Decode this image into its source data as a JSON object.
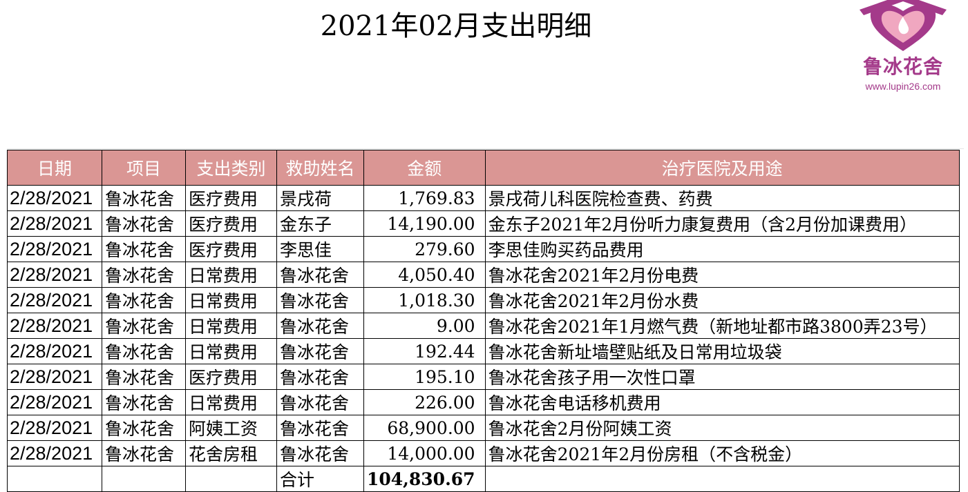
{
  "title": "2021年02月支出明细",
  "logo": {
    "name": "鲁冰花舍",
    "url": "www.lupin26.com",
    "icon": "heart-house-logo-icon",
    "brand_color": "#a43a8a"
  },
  "table": {
    "header_color": "#da9694",
    "headers": [
      "日期",
      "项目",
      "支出类别",
      "救助姓名",
      "金额",
      "治疗医院及用途"
    ],
    "rows": [
      {
        "date": "2/28/2021",
        "project": "鲁冰花舍",
        "category": "医疗费用",
        "name": "景戌荷",
        "amount": "1,769.83",
        "purpose": "景戌荷儿科医院检查费、药费"
      },
      {
        "date": "2/28/2021",
        "project": "鲁冰花舍",
        "category": "医疗费用",
        "name": "金东子",
        "amount": "14,190.00",
        "purpose": "金东子2021年2月份听力康复费用（含2月份加课费用）"
      },
      {
        "date": "2/28/2021",
        "project": "鲁冰花舍",
        "category": "医疗费用",
        "name": "李思佳",
        "amount": "279.60",
        "purpose": "李思佳购买药品费用"
      },
      {
        "date": "2/28/2021",
        "project": "鲁冰花舍",
        "category": "日常费用",
        "name": "鲁冰花舍",
        "amount": "4,050.40",
        "purpose": "鲁冰花舍2021年2月份电费"
      },
      {
        "date": "2/28/2021",
        "project": "鲁冰花舍",
        "category": "日常费用",
        "name": "鲁冰花舍",
        "amount": "1,018.30",
        "purpose": "鲁冰花舍2021年2月份水费"
      },
      {
        "date": "2/28/2021",
        "project": "鲁冰花舍",
        "category": "日常费用",
        "name": "鲁冰花舍",
        "amount": "9.00",
        "purpose": "鲁冰花舍2021年1月燃气费（新地址都市路3800弄23号）"
      },
      {
        "date": "2/28/2021",
        "project": "鲁冰花舍",
        "category": "日常费用",
        "name": "鲁冰花舍",
        "amount": "192.44",
        "purpose": "鲁冰花舍新址墙壁贴纸及日常用垃圾袋"
      },
      {
        "date": "2/28/2021",
        "project": "鲁冰花舍",
        "category": "医疗费用",
        "name": "鲁冰花舍",
        "amount": "195.10",
        "purpose": "鲁冰花舍孩子用一次性口罩"
      },
      {
        "date": "2/28/2021",
        "project": "鲁冰花舍",
        "category": "日常费用",
        "name": "鲁冰花舍",
        "amount": "226.00",
        "purpose": "鲁冰花舍电话移机费用"
      },
      {
        "date": "2/28/2021",
        "project": "鲁冰花舍",
        "category": "阿姨工资",
        "name": "鲁冰花舍",
        "amount": "68,900.00",
        "purpose": "鲁冰花舍2月份阿姨工资"
      },
      {
        "date": "2/28/2021",
        "project": "鲁冰花舍",
        "category": "花舍房租",
        "name": "鲁冰花舍",
        "amount": "14,000.00",
        "purpose": "鲁冰花舍2021年2月份房租（不含税金）"
      }
    ],
    "total_label": "合计",
    "total_amount": "104,830.67"
  }
}
